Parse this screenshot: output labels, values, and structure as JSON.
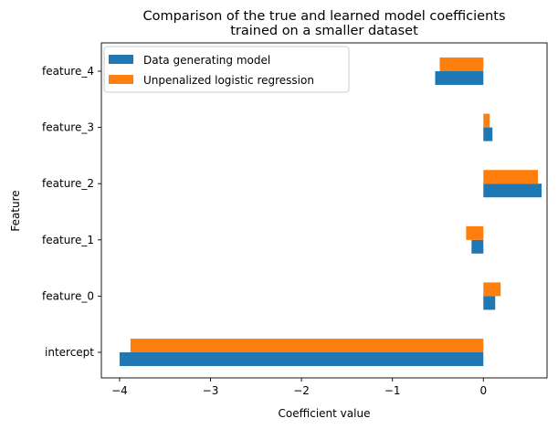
{
  "chart_data": {
    "type": "bar",
    "orientation": "horizontal",
    "title_lines": [
      "Comparison of the true and learned model coefficients",
      "trained on a smaller dataset"
    ],
    "xlabel": "Coefficient value",
    "ylabel": "Feature",
    "categories": [
      "intercept",
      "feature_0",
      "feature_1",
      "feature_2",
      "feature_3",
      "feature_4"
    ],
    "xlim": [
      -4.2,
      0.7
    ],
    "xticks": [
      -4,
      -3,
      -2,
      -1,
      0
    ],
    "xtick_labels": [
      "−4",
      "−3",
      "−2",
      "−1",
      "0"
    ],
    "grid": false,
    "legend_position": "top-left",
    "series": [
      {
        "name": "Data generating model",
        "color": "#1f77b4",
        "values": [
          -4.0,
          0.13,
          -0.13,
          0.64,
          0.1,
          -0.53
        ]
      },
      {
        "name": "Unpenalized logistic regression",
        "color": "#ff7f0e",
        "values": [
          -3.88,
          0.19,
          -0.19,
          0.6,
          0.07,
          -0.48
        ]
      }
    ]
  }
}
